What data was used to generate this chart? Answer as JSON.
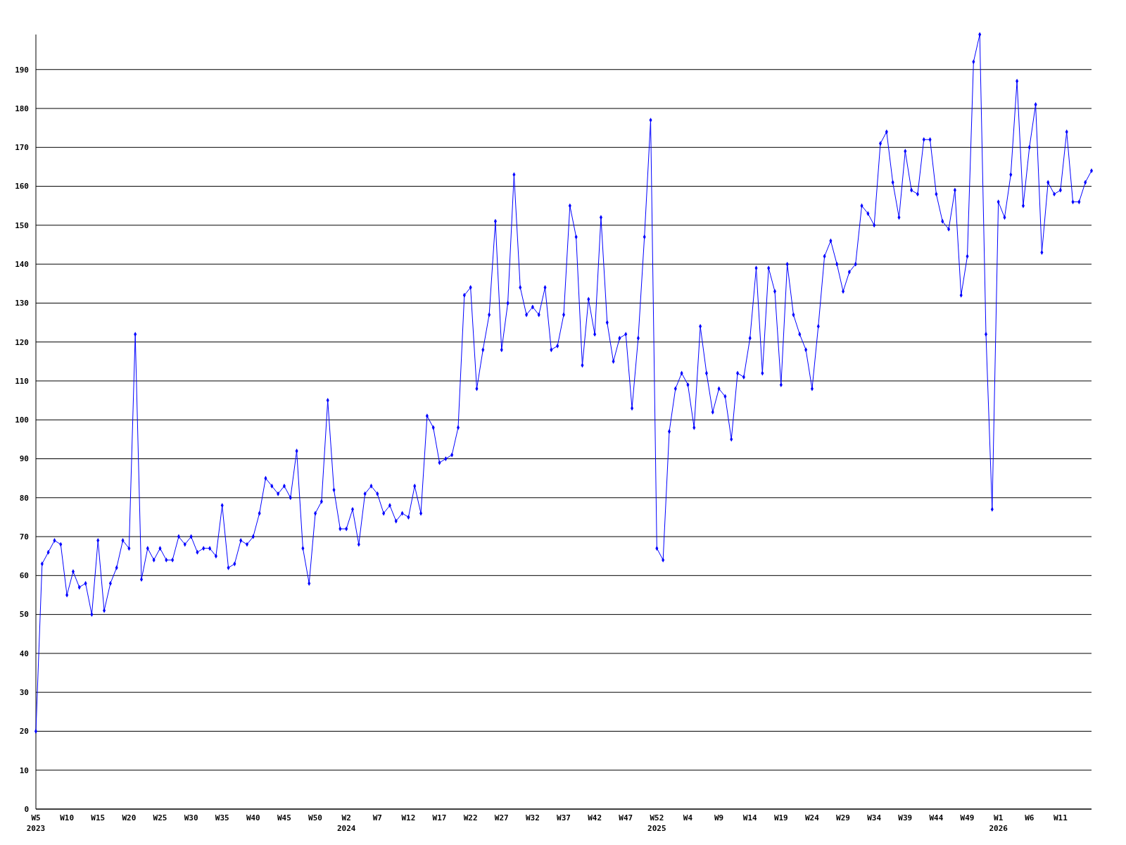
{
  "chart_data": {
    "type": "line",
    "categories": [
      "W5\n2023",
      null,
      null,
      null,
      null,
      "W10",
      null,
      null,
      null,
      null,
      "W15",
      null,
      null,
      null,
      null,
      "W20",
      null,
      null,
      null,
      null,
      "W25",
      null,
      null,
      null,
      null,
      "W30",
      null,
      null,
      null,
      null,
      "W35",
      null,
      null,
      null,
      null,
      "W40",
      null,
      null,
      null,
      null,
      "W45",
      null,
      null,
      null,
      null,
      "W50",
      null,
      null,
      null,
      null,
      "W2\n2024",
      null,
      null,
      null,
      null,
      "W7",
      null,
      null,
      null,
      null,
      "W12",
      null,
      null,
      null,
      null,
      "W17",
      null,
      null,
      null,
      null,
      "W22",
      null,
      null,
      null,
      null,
      "W27",
      null,
      null,
      null,
      null,
      "W32",
      null,
      null,
      null,
      null,
      "W37",
      null,
      null,
      null,
      null,
      "W42",
      null,
      null,
      null,
      null,
      "W47",
      null,
      null,
      null,
      null,
      "W52\n2025",
      null,
      null,
      null,
      null,
      "W4",
      null,
      null,
      null,
      null,
      "W9",
      null,
      null,
      null,
      null,
      "W14",
      null,
      null,
      null,
      null,
      "W19",
      null,
      null,
      null,
      null,
      "W24",
      null,
      null,
      null,
      null,
      "W29",
      null,
      null,
      null,
      null,
      "W34",
      null,
      null,
      null,
      null,
      "W39",
      null,
      null,
      null,
      null,
      "W44",
      null,
      null,
      null,
      null,
      "W49",
      null,
      null,
      null,
      null,
      "W1\n2026",
      null,
      null,
      null,
      null,
      "W6",
      null,
      null,
      null,
      null,
      "W11",
      null,
      null,
      null,
      null,
      null
    ],
    "series": [
      {
        "color": "#0000ff",
        "values": [
          20,
          63,
          66,
          69,
          68,
          55,
          61,
          57,
          58,
          50,
          69,
          51,
          58,
          62,
          69,
          67,
          122,
          59,
          67,
          64,
          67,
          64,
          64,
          70,
          68,
          70,
          66,
          67,
          67,
          65,
          78,
          62,
          63,
          69,
          68,
          70,
          76,
          85,
          83,
          81,
          83,
          80,
          92,
          67,
          58,
          76,
          79,
          105,
          82,
          72,
          72,
          77,
          68,
          81,
          83,
          81,
          76,
          78,
          74,
          76,
          75,
          83,
          76,
          101,
          98,
          89,
          90,
          91,
          98,
          132,
          134,
          108,
          118,
          127,
          151,
          118,
          130,
          163,
          134,
          127,
          129,
          127,
          134,
          118,
          119,
          127,
          155,
          147,
          114,
          131,
          122,
          152,
          125,
          115,
          121,
          122,
          103,
          121,
          147,
          177,
          67,
          64,
          97,
          108,
          112,
          109,
          98,
          124,
          112,
          102,
          108,
          106,
          95,
          112,
          111,
          121,
          139,
          112,
          139,
          133,
          109,
          140,
          127,
          122,
          118,
          108,
          124,
          142,
          146,
          140,
          133,
          138,
          140,
          155,
          153,
          150,
          171,
          174,
          161,
          152,
          169,
          159,
          158,
          172,
          172,
          158,
          151,
          149,
          159,
          132,
          142,
          192,
          199,
          122,
          77,
          156,
          152,
          163,
          187,
          155,
          170,
          181,
          143,
          161,
          158,
          159,
          174,
          156,
          156,
          161,
          164
        ]
      }
    ],
    "ylim": [
      0,
      199
    ],
    "yticks": [
      0,
      10,
      20,
      30,
      40,
      50,
      60,
      70,
      80,
      90,
      100,
      110,
      120,
      130,
      140,
      150,
      160,
      170,
      180,
      190
    ],
    "grid": "y",
    "marker": "diamond",
    "line_style": "solid"
  }
}
